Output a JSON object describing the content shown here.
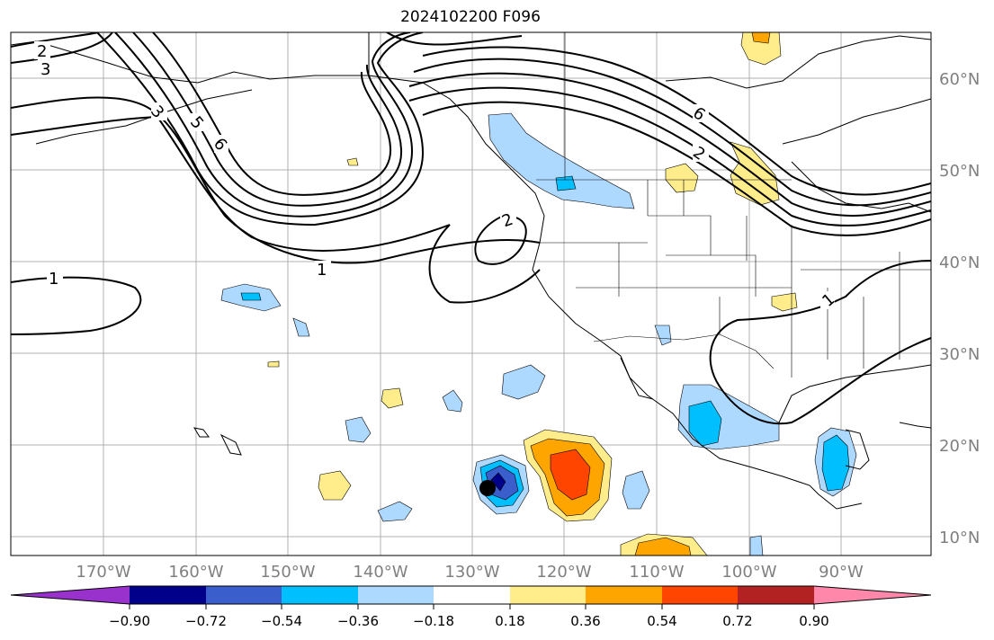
{
  "title": "2024102200 F096",
  "lat_labels": [
    "60°N",
    "50°N",
    "40°N",
    "30°N",
    "20°N",
    "10°N"
  ],
  "lon_labels": [
    "170°W",
    "160°W",
    "150°W",
    "140°W",
    "130°W",
    "120°W",
    "110°W",
    "100°W",
    "90°W"
  ],
  "contour_labels": [
    "2",
    "3",
    "3",
    "5",
    "6",
    "6",
    "2",
    "2",
    "1",
    "1",
    "1"
  ],
  "colorbar": {
    "ticks": [
      "−0.90",
      "−0.72",
      "−0.54",
      "−0.36",
      "−0.18",
      "0.18",
      "0.36",
      "0.54",
      "0.72",
      "0.90"
    ],
    "colors": [
      "#9932cc",
      "#00008b",
      "#3a5fcd",
      "#00bfff",
      "#add8ff",
      "#ffffff",
      "#ffec8b",
      "#ffa500",
      "#ff4500",
      "#b22222",
      "#ff88aa"
    ]
  },
  "storm_marker": "tropical-cyclone-center"
}
